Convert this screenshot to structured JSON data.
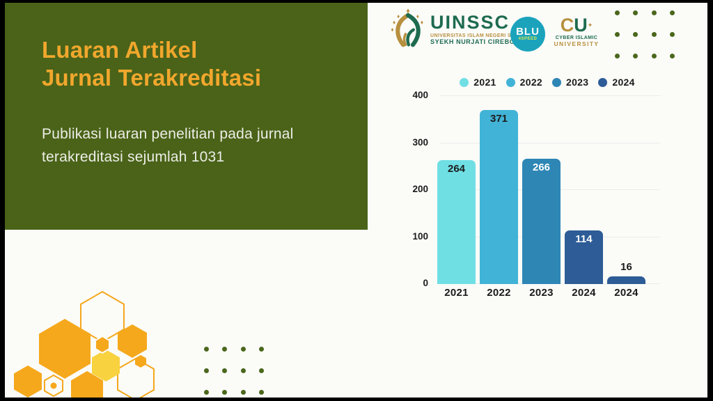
{
  "slide": {
    "title_line1": "Luaran Artikel",
    "title_line2": "Jurnal Terakreditasi",
    "subtitle": "Publikasi luaran penelitian pada jurnal terakreditasi sejumlah 1031"
  },
  "logos": {
    "uinssc": {
      "acronym": "UINSSC",
      "line1": "UNIVERSITAS ISLAM NEGERI SIBER",
      "line2": "SYEKH NURJATI CIREBON"
    },
    "blu": {
      "text": "BLU",
      "subtext": "4SPEED"
    },
    "ciu": {
      "c": "C",
      "u": "U",
      "sparkle": "✦",
      "line1": "CYBER ISLAMIC",
      "line2": "UNIVERSITY"
    }
  },
  "chart_data": {
    "type": "bar",
    "title": "",
    "xlabel": "",
    "ylabel": "",
    "categories": [
      "2021",
      "2022",
      "2023",
      "2024",
      "2024"
    ],
    "values": [
      264,
      371,
      266,
      114,
      16
    ],
    "bar_colors": [
      "#6FDFE4",
      "#41B3D6",
      "#2E86B5",
      "#2D5C96",
      "#2D5C96"
    ],
    "label_styles": [
      "inside-dark",
      "inside-dark",
      "inside-light",
      "inside-light",
      "above"
    ],
    "y_ticks": [
      400,
      300,
      200,
      100,
      0
    ],
    "ylim": [
      0,
      400
    ],
    "grid": "horizontal",
    "legend_position": "top",
    "legend": [
      {
        "label": "2021",
        "color": "#6FDFE4"
      },
      {
        "label": "2022",
        "color": "#41B3D6"
      },
      {
        "label": "2023",
        "color": "#2E86B5"
      },
      {
        "label": "2024",
        "color": "#2D5C96"
      }
    ]
  },
  "colors": {
    "background": "#FBFBF8",
    "frame": "#000000",
    "panel_green": "#4A6318",
    "title_gold": "#F1A72D",
    "subtitle_text": "#EDEDE7",
    "text_dark": "#1B1B1B",
    "gridline": "#EBEBEB",
    "dot_green": "#4A671C",
    "hex_orange": "#F5A81C",
    "hex_yellow": "#F8D23F",
    "uinssc_green": "#1E6B50",
    "uinssc_gold": "#B7903F",
    "blu_teal": "#1BA3BC",
    "blu_sub": "#D8E94F"
  }
}
